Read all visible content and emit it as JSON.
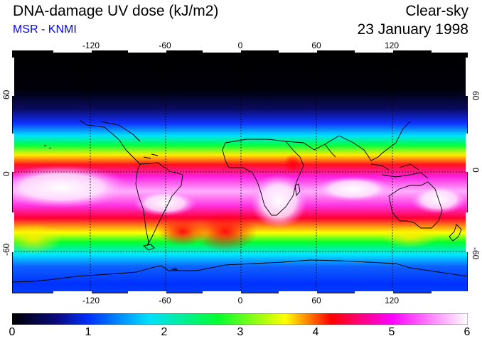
{
  "header": {
    "title": "DNA-damage UV dose (kJ/m2)",
    "source": "MSR - KNMI",
    "condition": "Clear-sky",
    "date": "23 January 1998"
  },
  "map": {
    "lon_ticks": [
      "-120",
      "-60",
      "0",
      "60",
      "120"
    ],
    "lat_ticks": [
      "60",
      "0",
      "-60"
    ],
    "colors": {
      "gridline": "#000000",
      "coast": "#000000"
    }
  },
  "legend": {
    "ticks": [
      "0",
      "1",
      "2",
      "3",
      "4",
      "5",
      "6"
    ],
    "min": 0,
    "max": 6,
    "colors": [
      "#000000",
      "#0000ff",
      "#00ffff",
      "#00ff00",
      "#ffff00",
      "#ff0000",
      "#ff00ff",
      "#ffffff"
    ]
  }
}
